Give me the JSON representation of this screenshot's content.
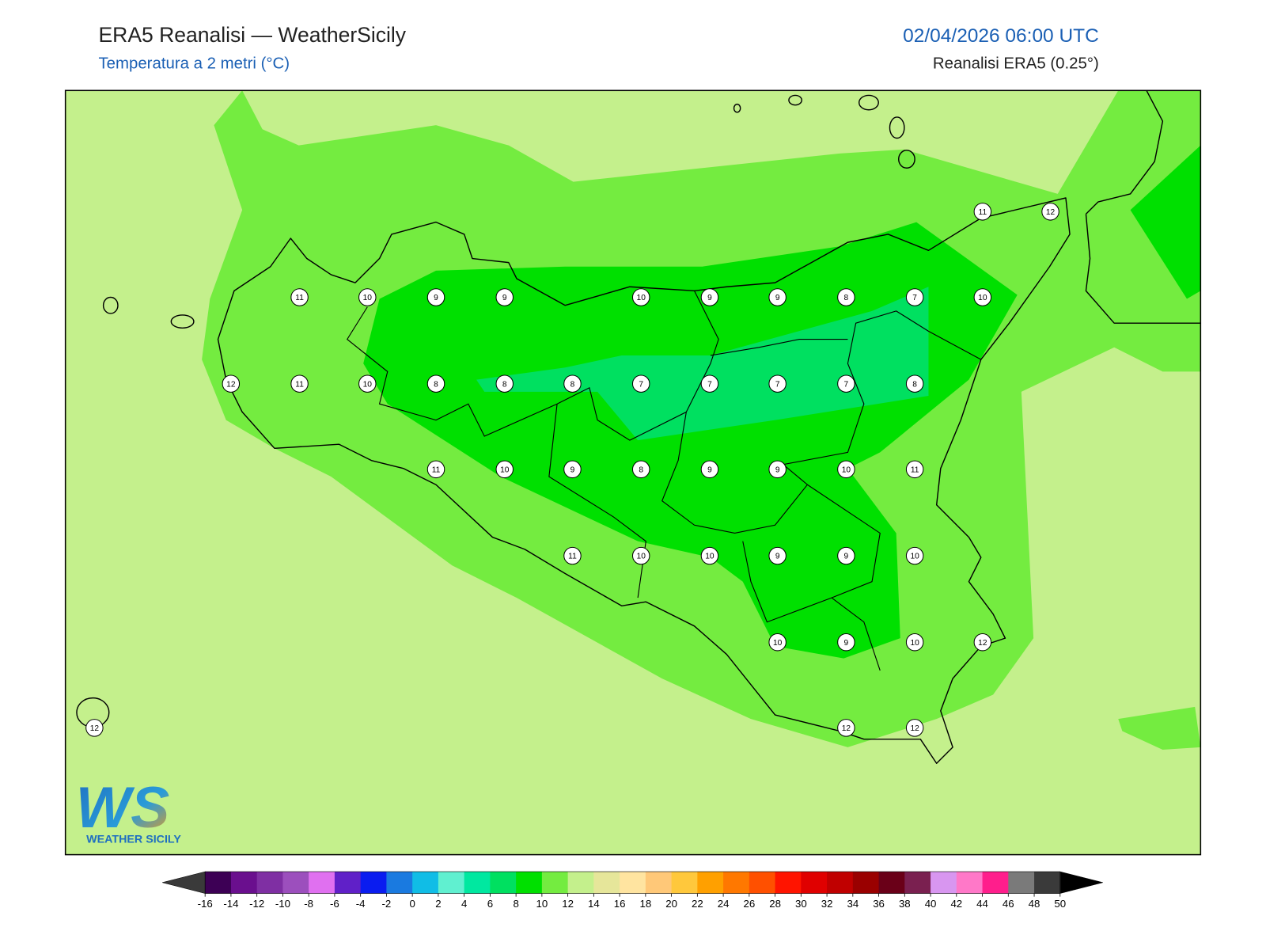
{
  "header": {
    "title": "ERA5 Reanalisi — WeatherSicily",
    "subtitle": "Temperatura a 2 metri (°C)",
    "datetime": "02/04/2026 06:00 UTC",
    "source": "Reanalisi ERA5 (0.25°)"
  },
  "stations": [
    11,
    12,
    11,
    10,
    9,
    9,
    10,
    9,
    9,
    8,
    7,
    10,
    12,
    11,
    10,
    8,
    8,
    8,
    7,
    7,
    7,
    7,
    8,
    11,
    10,
    9,
    8,
    9,
    9,
    10,
    11,
    11,
    10,
    10,
    9,
    9,
    10,
    10,
    9,
    10,
    12,
    12,
    12,
    12
  ],
  "logo": {
    "letters": "WS",
    "name": "WEATHER SICILY"
  },
  "colorbar": {
    "ticks": [
      -16,
      -14,
      -12,
      -10,
      -8,
      -6,
      -4,
      -2,
      0,
      2,
      4,
      6,
      8,
      10,
      12,
      14,
      16,
      18,
      20,
      22,
      24,
      26,
      28,
      30,
      32,
      34,
      36,
      38,
      40,
      42,
      44,
      46,
      48,
      50
    ],
    "colors": [
      "#3d0055",
      "#6a0f8e",
      "#7f2fa3",
      "#9c4fbd",
      "#e070f0",
      "#6020c8",
      "#0a1cf0",
      "#1a7ae0",
      "#10bde6",
      "#60f0d0",
      "#00e8a0",
      "#00e060",
      "#00e000",
      "#74ec40",
      "#c4f08c",
      "#e6e69a",
      "#ffe4a0",
      "#ffc878",
      "#ffc83c",
      "#ffa000",
      "#ff7800",
      "#ff5000",
      "#ff1400",
      "#e00000",
      "#c00000",
      "#9a0000",
      "#6a0018",
      "#7a2050",
      "#d896f0",
      "#ff78c8",
      "#ff1e8c",
      "#7a7a7a",
      "#3a3a3a"
    ],
    "extend_colors": [
      "#3a3a3a",
      "#000000"
    ]
  }
}
